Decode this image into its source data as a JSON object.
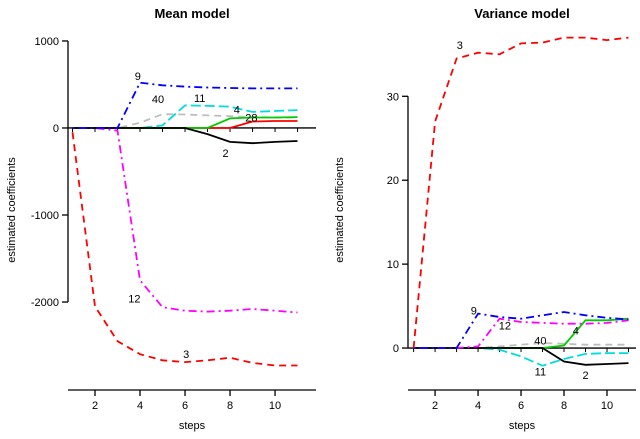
{
  "figure": {
    "background": "#ffffff"
  },
  "chart_data": [
    {
      "type": "line",
      "title": "Mean model",
      "xlabel": "steps",
      "ylabel": "estimated coefficients",
      "x": [
        1,
        2,
        3,
        4,
        5,
        6,
        7,
        8,
        9,
        10,
        11
      ],
      "xlim": [
        0.8,
        11.82
      ],
      "ylim": [
        -3011,
        1126
      ],
      "xticks": [
        2,
        4,
        6,
        8,
        10
      ],
      "yticks": [
        1000,
        0,
        -1000,
        -2000
      ],
      "grid": false,
      "legend": "inline-labels",
      "zero_line": true,
      "series": [
        {
          "name": "40",
          "color": "#bebebe",
          "dash": "dashed",
          "values": [
            0,
            0,
            0,
            60,
            160,
            155,
            145,
            135,
            125,
            120,
            120
          ],
          "label": {
            "x": 4.8,
            "y": 335
          }
        },
        {
          "name": "11",
          "color": "#00dddd",
          "dash": "longdash",
          "values": [
            0,
            0,
            0,
            0,
            30,
            260,
            255,
            245,
            185,
            195,
            205
          ],
          "label": {
            "x": 6.65,
            "y": 345
          }
        },
        {
          "name": "28",
          "color": "#ff0000",
          "dash": "solid",
          "values": [
            0,
            0,
            0,
            0,
            0,
            0,
            0,
            0,
            75,
            80,
            80
          ],
          "label": {
            "x": 8.95,
            "y": 120
          }
        },
        {
          "name": "4",
          "color": "#00cd00",
          "dash": "solid",
          "values": [
            0,
            0,
            0,
            0,
            0,
            0,
            0,
            110,
            120,
            120,
            125
          ],
          "label": {
            "x": 8.3,
            "y": 210
          }
        },
        {
          "name": "2",
          "color": "#000000",
          "dash": "solid",
          "values": [
            0,
            0,
            0,
            0,
            0,
            0,
            -70,
            -160,
            -175,
            -160,
            -150
          ],
          "label": {
            "x": 7.8,
            "y": -290
          }
        },
        {
          "name": "12",
          "color": "#ff00ff",
          "dash": "dashdot",
          "values": [
            0,
            0,
            -30,
            -1750,
            -2060,
            -2100,
            -2110,
            -2100,
            -2080,
            -2100,
            -2120
          ],
          "label": {
            "x": 3.75,
            "y": -1960
          }
        },
        {
          "name": "9",
          "color": "#0000ff",
          "dash": "dashdot",
          "values": [
            0,
            0,
            0,
            520,
            490,
            475,
            465,
            460,
            455,
            455,
            455
          ],
          "label": {
            "x": 3.9,
            "y": 600
          }
        },
        {
          "name": "3",
          "color": "#ff0000",
          "dash": "dashed",
          "values": [
            -50,
            -2050,
            -2450,
            -2600,
            -2670,
            -2690,
            -2670,
            -2640,
            -2700,
            -2730,
            -2730
          ],
          "label": {
            "x": 6.05,
            "y": -2600
          }
        }
      ]
    },
    {
      "type": "line",
      "title": "Variance model",
      "xlabel": "steps",
      "ylabel": "estimated coefficients",
      "x": [
        1,
        2,
        3,
        4,
        5,
        6,
        7,
        8,
        9,
        10,
        11
      ],
      "xlim": [
        0.74,
        11.35
      ],
      "ylim": [
        -5,
        37.9
      ],
      "xticks": [
        2,
        4,
        6,
        8,
        10
      ],
      "yticks": [
        0,
        10,
        20,
        30
      ],
      "grid": false,
      "legend": "inline-labels",
      "zero_line": true,
      "series": [
        {
          "name": "40",
          "color": "#bebebe",
          "dash": "dashed",
          "values": [
            0,
            0,
            0,
            0,
            0.2,
            0.4,
            0.6,
            0.5,
            0.4,
            0.4,
            0.4
          ],
          "label": {
            "x": 6.9,
            "y": 0.9
          }
        },
        {
          "name": "11",
          "color": "#00dddd",
          "dash": "longdash",
          "values": [
            0,
            0,
            0,
            0,
            -0.2,
            -1.0,
            -2.1,
            -1.3,
            -0.7,
            -0.6,
            -0.6
          ],
          "label": {
            "x": 6.9,
            "y": -2.8
          }
        },
        {
          "name": "4",
          "color": "#00cd00",
          "dash": "solid",
          "values": [
            0,
            0,
            0,
            0,
            0,
            0,
            0,
            0.3,
            3.3,
            3.3,
            3.5
          ],
          "label": {
            "x": 8.55,
            "y": 2.1
          }
        },
        {
          "name": "2",
          "color": "#000000",
          "dash": "solid",
          "values": [
            0,
            0,
            0,
            0,
            0,
            0,
            0,
            -1.6,
            -2.0,
            -1.9,
            -1.8
          ],
          "label": {
            "x": 9.0,
            "y": -3.2
          }
        },
        {
          "name": "12",
          "color": "#ff00ff",
          "dash": "dashdot",
          "values": [
            0,
            0,
            0,
            0.2,
            3.5,
            3.1,
            3.0,
            2.9,
            2.9,
            3.0,
            3.3
          ],
          "label": {
            "x": 5.25,
            "y": 2.7
          }
        },
        {
          "name": "9",
          "color": "#0000ff",
          "dash": "dashdot",
          "values": [
            0,
            0,
            0,
            4.1,
            3.7,
            3.5,
            3.9,
            4.3,
            3.9,
            3.6,
            3.4
          ],
          "label": {
            "x": 3.8,
            "y": 4.5
          }
        },
        {
          "name": "3",
          "color": "#ff0000",
          "dash": "dashed",
          "values": [
            0,
            27,
            34.5,
            35.2,
            35.0,
            36.3,
            36.4,
            37,
            37,
            36.7,
            37
          ],
          "label": {
            "x": 3.15,
            "y": 36.1
          }
        }
      ]
    }
  ]
}
